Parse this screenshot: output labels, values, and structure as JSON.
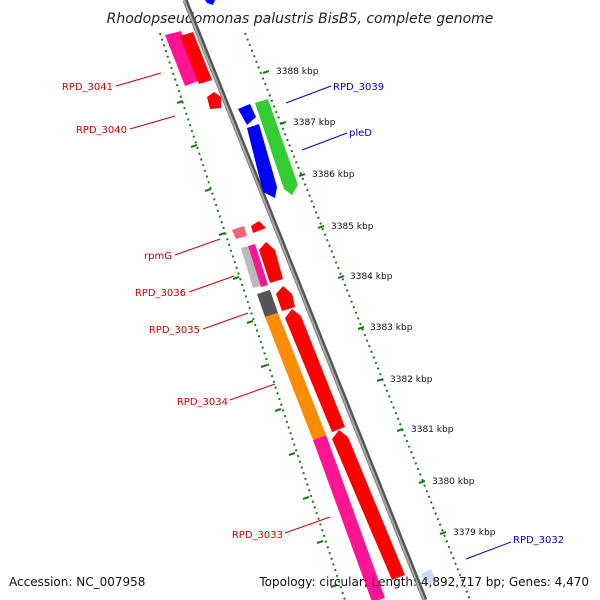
{
  "title": "Rhodopseudomonas palustris BisB5, complete genome",
  "footer": {
    "accession": "Accession: NC_007958",
    "topology": "Topology: circular; Length: 4,892,717 bp; Genes: 4,470"
  },
  "ticks": [
    "3388 kbp",
    "3387 kbp",
    "3386 kbp",
    "3385 kbp",
    "3384 kbp",
    "3383 kbp",
    "3382 kbp",
    "3381 kbp",
    "3380 kbp",
    "3379 kbp"
  ],
  "gene_labels": {
    "rpd3041": "RPD_3041",
    "rpd3040": "RPD_3040",
    "rpd3039": "RPD_3039",
    "pled": "pleD",
    "rpmg": "rpmG",
    "rpd3036": "RPD_3036",
    "rpd3035": "RPD_3035",
    "rpd3034": "RPD_3034",
    "rpd3033": "RPD_3033",
    "rpd3032": "RPD_3032"
  },
  "colors": {
    "reverse_strand_label": "#cc0000",
    "forward_strand_label": "#0000cc",
    "backbone": "#888888",
    "tick": "#1a7a1a",
    "cds_red": "#ff0000",
    "cds_magenta": "#ff1493",
    "cds_orange": "#ff8c00",
    "cds_green": "#33cc33",
    "cds_blue": "#0000ff",
    "cds_gray": "#555555",
    "cds_light_gray": "#bbbbbb",
    "cds_pink": "#ee6677"
  }
}
